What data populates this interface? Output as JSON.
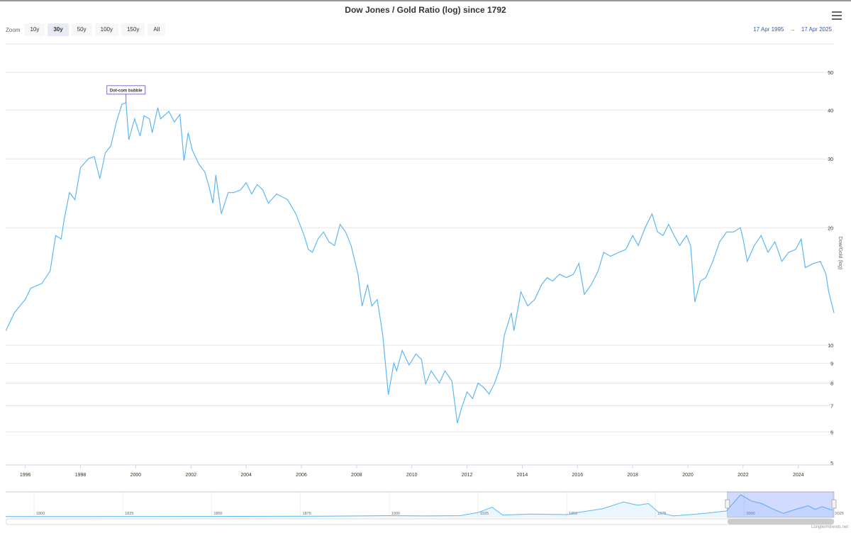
{
  "chart_data": {
    "type": "line",
    "title": "Dow Jones / Gold Ratio (log) since 1792",
    "ylabel": "Dow/Gold (log)",
    "xlabel": "",
    "y_scale": "log",
    "ylim": [
      5,
      50
    ],
    "xlim": [
      1995.29,
      2025.29
    ],
    "grid": true,
    "legend": "none",
    "line_color": "#5cb8f5",
    "y_ticks": [
      5,
      6,
      7,
      8,
      9,
      10,
      20,
      30,
      40,
      50
    ],
    "x_ticks": [
      1996,
      1998,
      2000,
      2002,
      2004,
      2006,
      2008,
      2010,
      2012,
      2014,
      2016,
      2018,
      2020,
      2022,
      2024
    ],
    "annotation": {
      "label": "Dot-com bubble",
      "x": 1999.65,
      "y": 41.8
    },
    "series": [
      {
        "values": [
          [
            1995.3,
            10.9
          ],
          [
            1995.6,
            12.1
          ],
          [
            1996.0,
            13.1
          ],
          [
            1996.2,
            14.0
          ],
          [
            1996.6,
            14.4
          ],
          [
            1996.9,
            15.5
          ],
          [
            1997.1,
            19.1
          ],
          [
            1997.3,
            18.7
          ],
          [
            1997.4,
            20.8
          ],
          [
            1997.6,
            24.6
          ],
          [
            1997.8,
            23.6
          ],
          [
            1998.0,
            28.5
          ],
          [
            1998.3,
            30.1
          ],
          [
            1998.5,
            30.4
          ],
          [
            1998.7,
            26.7
          ],
          [
            1998.9,
            31.1
          ],
          [
            1999.1,
            32.4
          ],
          [
            1999.3,
            37.3
          ],
          [
            1999.5,
            41.4
          ],
          [
            1999.65,
            41.8
          ],
          [
            1999.75,
            33.6
          ],
          [
            1999.96,
            38.0
          ],
          [
            2000.16,
            34.3
          ],
          [
            2000.3,
            38.7
          ],
          [
            2000.5,
            38.0
          ],
          [
            2000.6,
            35.0
          ],
          [
            2000.8,
            40.6
          ],
          [
            2000.9,
            38.0
          ],
          [
            2001.2,
            39.7
          ],
          [
            2001.4,
            37.3
          ],
          [
            2001.6,
            39.0
          ],
          [
            2001.75,
            29.7
          ],
          [
            2001.9,
            35.0
          ],
          [
            2002.05,
            31.6
          ],
          [
            2002.3,
            29.0
          ],
          [
            2002.5,
            27.8
          ],
          [
            2002.65,
            25.6
          ],
          [
            2002.8,
            23.1
          ],
          [
            2002.9,
            27.3
          ],
          [
            2003.1,
            21.7
          ],
          [
            2003.35,
            24.6
          ],
          [
            2003.55,
            24.6
          ],
          [
            2003.8,
            25.0
          ],
          [
            2004.0,
            26.1
          ],
          [
            2004.2,
            24.4
          ],
          [
            2004.4,
            25.8
          ],
          [
            2004.6,
            25.0
          ],
          [
            2004.8,
            23.1
          ],
          [
            2005.1,
            24.4
          ],
          [
            2005.3,
            24.0
          ],
          [
            2005.5,
            23.6
          ],
          [
            2005.8,
            21.7
          ],
          [
            2006.1,
            19.1
          ],
          [
            2006.25,
            17.6
          ],
          [
            2006.4,
            17.3
          ],
          [
            2006.6,
            18.7
          ],
          [
            2006.8,
            19.5
          ],
          [
            2007.0,
            18.4
          ],
          [
            2007.2,
            18.0
          ],
          [
            2007.4,
            20.4
          ],
          [
            2007.6,
            19.5
          ],
          [
            2007.8,
            18.0
          ],
          [
            2008.05,
            15.2
          ],
          [
            2008.2,
            12.6
          ],
          [
            2008.4,
            14.3
          ],
          [
            2008.55,
            12.6
          ],
          [
            2008.75,
            13.1
          ],
          [
            2008.95,
            10.6
          ],
          [
            2009.15,
            7.47
          ],
          [
            2009.35,
            9.0
          ],
          [
            2009.45,
            8.6
          ],
          [
            2009.65,
            9.7
          ],
          [
            2009.9,
            8.9
          ],
          [
            2010.15,
            9.5
          ],
          [
            2010.35,
            9.2
          ],
          [
            2010.5,
            7.96
          ],
          [
            2010.7,
            8.6
          ],
          [
            2011.0,
            8.0
          ],
          [
            2011.2,
            8.6
          ],
          [
            2011.45,
            8.1
          ],
          [
            2011.65,
            6.32
          ],
          [
            2011.8,
            6.9
          ],
          [
            2012.0,
            7.6
          ],
          [
            2012.2,
            7.3
          ],
          [
            2012.4,
            8.0
          ],
          [
            2012.6,
            7.8
          ],
          [
            2012.8,
            7.5
          ],
          [
            2013.0,
            8.0
          ],
          [
            2013.2,
            8.8
          ],
          [
            2013.35,
            10.6
          ],
          [
            2013.6,
            12.1
          ],
          [
            2013.7,
            10.9
          ],
          [
            2013.95,
            13.7
          ],
          [
            2014.2,
            12.6
          ],
          [
            2014.45,
            13.1
          ],
          [
            2014.7,
            14.3
          ],
          [
            2014.9,
            14.9
          ],
          [
            2015.1,
            14.6
          ],
          [
            2015.35,
            15.2
          ],
          [
            2015.6,
            14.9
          ],
          [
            2015.85,
            15.2
          ],
          [
            2016.05,
            16.2
          ],
          [
            2016.25,
            13.5
          ],
          [
            2016.5,
            14.3
          ],
          [
            2016.75,
            15.5
          ],
          [
            2016.95,
            17.3
          ],
          [
            2017.2,
            16.9
          ],
          [
            2017.5,
            17.3
          ],
          [
            2017.75,
            17.6
          ],
          [
            2018.0,
            19.1
          ],
          [
            2018.2,
            18.0
          ],
          [
            2018.45,
            20.0
          ],
          [
            2018.7,
            21.7
          ],
          [
            2018.9,
            19.5
          ],
          [
            2019.1,
            19.1
          ],
          [
            2019.3,
            20.4
          ],
          [
            2019.5,
            19.1
          ],
          [
            2019.7,
            18.0
          ],
          [
            2019.95,
            19.1
          ],
          [
            2020.1,
            18.0
          ],
          [
            2020.25,
            12.9
          ],
          [
            2020.45,
            14.6
          ],
          [
            2020.65,
            14.9
          ],
          [
            2020.9,
            16.4
          ],
          [
            2021.15,
            18.4
          ],
          [
            2021.4,
            19.5
          ],
          [
            2021.65,
            19.5
          ],
          [
            2021.9,
            20.0
          ],
          [
            2022.0,
            18.7
          ],
          [
            2022.15,
            16.4
          ],
          [
            2022.4,
            18.0
          ],
          [
            2022.65,
            19.1
          ],
          [
            2022.9,
            17.3
          ],
          [
            2023.15,
            18.4
          ],
          [
            2023.4,
            16.4
          ],
          [
            2023.65,
            17.3
          ],
          [
            2023.9,
            17.6
          ],
          [
            2024.1,
            18.7
          ],
          [
            2024.25,
            15.8
          ],
          [
            2024.55,
            16.2
          ],
          [
            2024.8,
            16.4
          ],
          [
            2025.0,
            15.2
          ],
          [
            2025.1,
            13.7
          ],
          [
            2025.29,
            12.1
          ]
        ]
      }
    ],
    "navigator": {
      "x_ticks": [
        1800,
        1825,
        1850,
        1875,
        1900,
        1925,
        1950,
        1975,
        2000,
        2025
      ],
      "xlim": [
        1792,
        2025.29
      ],
      "selected_range": [
        1995.29,
        2025.29
      ],
      "values": [
        [
          1792,
          0.3
        ],
        [
          1850,
          0.5
        ],
        [
          1880,
          1
        ],
        [
          1900,
          2
        ],
        [
          1910,
          1.5
        ],
        [
          1920,
          2
        ],
        [
          1925,
          8
        ],
        [
          1929,
          18
        ],
        [
          1932,
          3
        ],
        [
          1940,
          5
        ],
        [
          1950,
          4
        ],
        [
          1955,
          10
        ],
        [
          1960,
          15
        ],
        [
          1966,
          28
        ],
        [
          1970,
          22
        ],
        [
          1973,
          25
        ],
        [
          1976,
          8
        ],
        [
          1980,
          1.5
        ],
        [
          1985,
          4
        ],
        [
          1990,
          7
        ],
        [
          1995,
          11
        ],
        [
          1999,
          42
        ],
        [
          2002,
          30
        ],
        [
          2005,
          25
        ],
        [
          2008,
          15
        ],
        [
          2011,
          6.5
        ],
        [
          2015,
          15
        ],
        [
          2018,
          21
        ],
        [
          2020,
          14
        ],
        [
          2022,
          19
        ],
        [
          2025,
          12
        ]
      ]
    }
  },
  "toolbar": {
    "zoom_label": "Zoom",
    "zoom_buttons": [
      "10y",
      "30y",
      "50y",
      "100y",
      "150y",
      "All"
    ],
    "active_zoom": "30y",
    "range_from": "17 Apr 1995",
    "range_arrow": "→",
    "range_to": "17 Apr 2025",
    "menu_icon": "hamburger-menu-icon"
  },
  "credit": "Longtermtrends.net"
}
